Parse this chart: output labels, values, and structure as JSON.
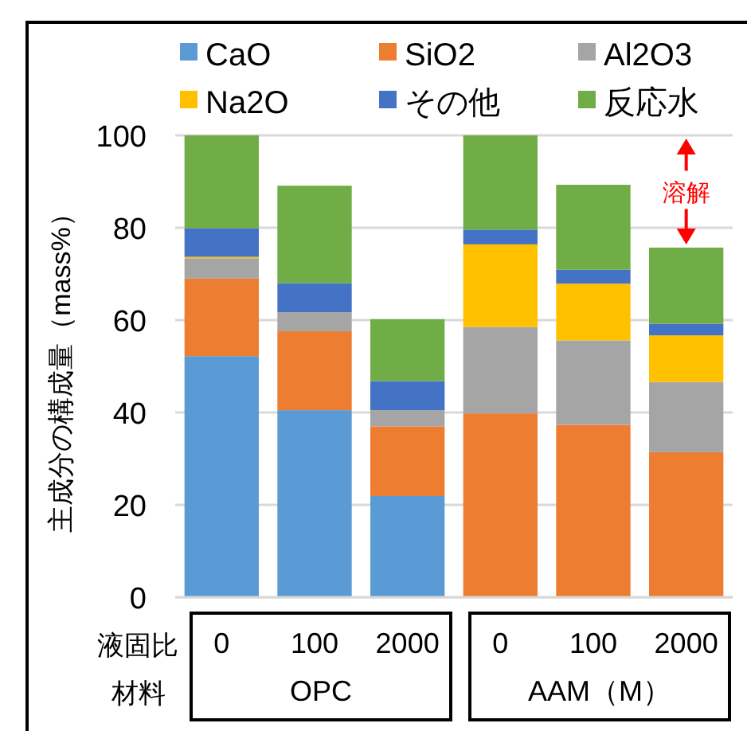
{
  "chart_data": {
    "type": "bar",
    "stacked": true,
    "ylabel": "主成分の構成量（mass%）",
    "categories": [
      "0",
      "100",
      "2000",
      "0",
      "100",
      "2000"
    ],
    "series": [
      {
        "name": "CaO",
        "color": "#5b9bd5",
        "values": [
          52.2,
          40.5,
          21.9,
          0,
          0,
          0
        ]
      },
      {
        "name": "SiO2",
        "color": "#ed7d31",
        "values": [
          16.8,
          17.1,
          15.1,
          39.8,
          37.3,
          31.4
        ]
      },
      {
        "name": "Al2O3",
        "color": "#a5a5a5",
        "values": [
          4.4,
          4.1,
          3.5,
          18.7,
          18.3,
          15.2
        ]
      },
      {
        "name": "Na2O",
        "color": "#ffc000",
        "values": [
          0.3,
          0,
          0,
          17.9,
          12.3,
          10.1
        ]
      },
      {
        "name": "その他",
        "color": "#4472c4",
        "values": [
          6.2,
          6.3,
          6.3,
          3.2,
          3.0,
          2.5
        ]
      },
      {
        "name": "反応水",
        "color": "#70ad47",
        "values": [
          20.1,
          21.1,
          13.4,
          20.4,
          18.4,
          16.5
        ]
      }
    ],
    "ylim": [
      0,
      100
    ],
    "yticks": [
      0,
      20,
      40,
      60,
      80,
      100
    ],
    "grid": "y",
    "legend": "top",
    "annotations": [
      "液固比",
      "材料",
      "OPC",
      "AAM（M）",
      "溶解"
    ]
  }
}
